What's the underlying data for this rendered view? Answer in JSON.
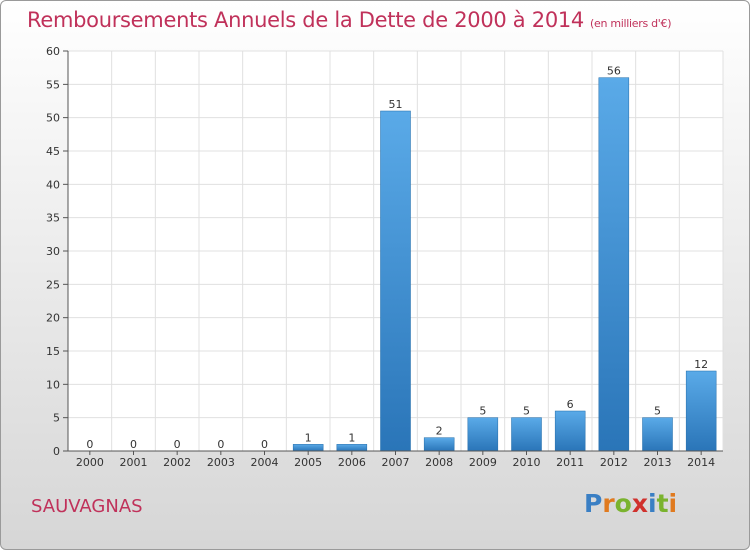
{
  "title": "Remboursements Annuels de la Dette de 2000 à 2014",
  "subtitle": "(en milliers d'€)",
  "footer": {
    "place": "SAUVAGNAS",
    "brand": "Proxiti",
    "brand_colors": [
      "#3a7fc4",
      "#e07a1f",
      "#7ab32e",
      "#d0312d",
      "#3a7fc4",
      "#7ab32e",
      "#e07a1f"
    ]
  },
  "colors": {
    "title": "#c0315a",
    "bar_top": "#5aaae8",
    "bar_bottom": "#2a75b8",
    "grid": "#e0e0e0",
    "axis": "#555555"
  },
  "chart_data": {
    "type": "bar",
    "categories": [
      "2000",
      "2001",
      "2002",
      "2003",
      "2004",
      "2005",
      "2006",
      "2007",
      "2008",
      "2009",
      "2010",
      "2011",
      "2012",
      "2013",
      "2014"
    ],
    "values": [
      0,
      0,
      0,
      0,
      0,
      1,
      1,
      51,
      2,
      5,
      5,
      6,
      56,
      5,
      12
    ],
    "value_labels": [
      "0",
      "0",
      "0",
      "0",
      "0",
      "1",
      "1",
      "51",
      "2",
      "5",
      "5",
      "6",
      "56",
      "5",
      "12"
    ],
    "ylim": [
      0,
      60
    ],
    "yticks": [
      0,
      5,
      10,
      15,
      20,
      25,
      30,
      35,
      40,
      45,
      50,
      55,
      60
    ],
    "grid": true
  }
}
